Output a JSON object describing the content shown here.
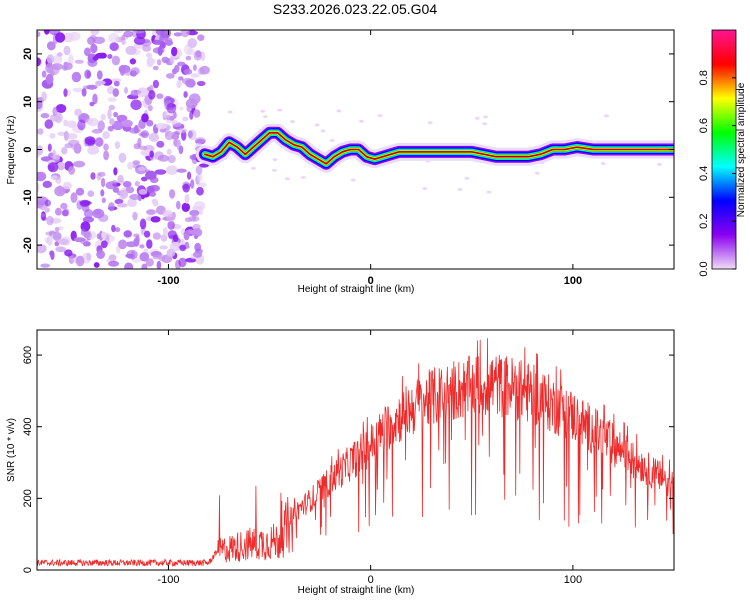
{
  "title": "S233.2026.023.22.05.G04",
  "chart_data": [
    {
      "type": "heatmap",
      "xlabel": "Height of straight line (km)",
      "ylabel": "Frequency (Hz)",
      "xlim": [
        -165,
        150
      ],
      "ylim": [
        -25,
        25
      ],
      "xticks": [
        {
          "v": -100,
          "label": "-100"
        },
        {
          "v": 0,
          "label": "0"
        },
        {
          "v": 100,
          "label": "100"
        }
      ],
      "yticks": [
        {
          "v": -20,
          "label": "-20"
        },
        {
          "v": -10,
          "label": "-10"
        },
        {
          "v": 0,
          "label": "0"
        },
        {
          "v": 10,
          "label": "10"
        },
        {
          "v": 20,
          "label": "20"
        }
      ],
      "noise_region_x": [
        -165,
        -82
      ],
      "ridge": {
        "x": [
          -82,
          -78,
          -74,
          -70,
          -66,
          -62,
          -58,
          -54,
          -50,
          -46,
          -42,
          -38,
          -34,
          -30,
          -26,
          -22,
          -18,
          -14,
          -10,
          -6,
          -2,
          2,
          6,
          10,
          14,
          20,
          30,
          40,
          50,
          56,
          62,
          70,
          78,
          84,
          90,
          96,
          102,
          110,
          120,
          130,
          140,
          150
        ],
        "y": [
          -1,
          -1.5,
          -0.5,
          1.5,
          0.5,
          -1,
          0.5,
          2,
          3.5,
          3.5,
          2,
          1,
          0.5,
          -1,
          -2,
          -3,
          -1.5,
          -0.5,
          0,
          0,
          -1.5,
          -2,
          -1.5,
          -1,
          -0.5,
          -0.5,
          -0.5,
          -0.5,
          -0.5,
          -1,
          -1.5,
          -1.5,
          -1.5,
          -1,
          0,
          0,
          0.5,
          0,
          0,
          0,
          0,
          0
        ]
      },
      "colorbar": {
        "label": "Normalized spectral amplitude",
        "range": [
          0,
          1
        ],
        "ticks": [
          {
            "v": 0.0,
            "label": "0.0"
          },
          {
            "v": 0.2,
            "label": "0.2"
          },
          {
            "v": 0.4,
            "label": "0.4"
          },
          {
            "v": 0.6,
            "label": "0.6"
          },
          {
            "v": 0.8,
            "label": "0.8"
          }
        ],
        "colors": [
          "#efdcf6",
          "#8a00f0",
          "#0000ff",
          "#00ffff",
          "#00ff00",
          "#ffff00",
          "#ff0000",
          "#ff1493"
        ]
      }
    },
    {
      "type": "line",
      "xlabel": "Height of straight line (km)",
      "ylabel": "SNR (10 * v/v)",
      "xlim": [
        -165,
        150
      ],
      "ylim": [
        0,
        670
      ],
      "xticks": [
        {
          "v": -100,
          "label": "-100"
        },
        {
          "v": 0,
          "label": "0"
        },
        {
          "v": 100,
          "label": "100"
        }
      ],
      "yticks": [
        {
          "v": 0,
          "label": "0"
        },
        {
          "v": 200,
          "label": "200"
        },
        {
          "v": 400,
          "label": "400"
        },
        {
          "v": 600,
          "label": "600"
        }
      ],
      "color": "#ee2a2a",
      "envelope": {
        "x": [
          -165,
          -80,
          -75,
          -60,
          -45,
          -40,
          -30,
          -20,
          -10,
          0,
          10,
          20,
          30,
          40,
          50,
          60,
          70,
          80,
          90,
          100,
          110,
          120,
          130,
          140,
          150
        ],
        "y": [
          20,
          20,
          60,
          80,
          90,
          150,
          195,
          250,
          300,
          350,
          410,
          450,
          480,
          500,
          510,
          520,
          510,
          490,
          460,
          430,
          390,
          350,
          310,
          270,
          240
        ]
      }
    }
  ]
}
